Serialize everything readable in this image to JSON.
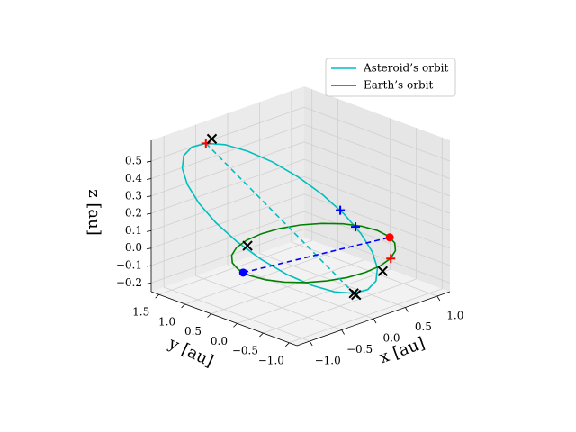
{
  "chart_data": {
    "type": "line3d",
    "xlabel": "x [au]",
    "ylabel": "y [au]",
    "zlabel": "z [au]",
    "xlim": [
      -1.2,
      1.2
    ],
    "ylim": [
      -1.15,
      1.65
    ],
    "zlim": [
      -0.25,
      0.62
    ],
    "xticks": [
      {
        "value": -1,
        "label": "−1.0"
      },
      {
        "value": -0.5,
        "label": "−0.5"
      },
      {
        "value": 0,
        "label": "0.0"
      },
      0.5,
      {
        "value": 1,
        "label": "1.0"
      }
    ],
    "yticks": [
      {
        "value": -1,
        "label": "−1.0"
      },
      {
        "value": -0.5,
        "label": "−0.5"
      },
      {
        "value": 0,
        "label": "0.0"
      },
      0.5,
      {
        "value": 1,
        "label": "1.0"
      },
      1.5
    ],
    "zticks": [
      {
        "value": -0.2,
        "label": "−0.2"
      },
      {
        "value": -0.1,
        "label": "−0.1"
      },
      {
        "value": 0,
        "label": "0.0"
      },
      0.1,
      0.2,
      0.3,
      0.4,
      0.5
    ],
    "grid": true,
    "legend": "upper right",
    "series": [
      {
        "name": "Asteroid’s orbit",
        "color": "#00bfbf",
        "x": [
          -0.75,
          -0.535,
          -0.301,
          -0.062,
          0.165,
          0.366,
          0.525,
          0.632,
          0.681,
          0.666,
          0.591,
          0.459,
          0.28,
          0.065,
          -0.169,
          -0.408,
          -0.635,
          -0.836,
          -0.995,
          -1.102,
          -1.151,
          -1.136,
          -1.061,
          -0.929
        ],
        "y": [
          1.15,
          1.045,
          0.894,
          0.707,
          0.495,
          0.275,
          0.06,
          -0.135,
          -0.295,
          -0.411,
          -0.474,
          -0.481,
          -0.43,
          -0.325,
          -0.174,
          0.013,
          0.225,
          0.445,
          0.66,
          0.855,
          1.015,
          1.131,
          1.194,
          1.201
        ],
        "z": [
          0.6,
          0.576,
          0.525,
          0.452,
          0.36,
          0.257,
          0.15,
          0.045,
          -0.05,
          -0.128,
          -0.185,
          -0.216,
          -0.22,
          -0.196,
          -0.145,
          -0.072,
          0.02,
          0.123,
          0.23,
          0.335,
          0.43,
          0.508,
          0.565,
          0.596
        ]
      },
      {
        "name": "Earth’s orbit",
        "color": "#008000",
        "x": [
          1,
          0.966,
          0.866,
          0.707,
          0.5,
          0.259,
          0,
          -0.259,
          -0.5,
          -0.707,
          -0.866,
          -0.966,
          -1,
          -0.966,
          -0.866,
          -0.707,
          -0.5,
          -0.259,
          0,
          0.259,
          0.5,
          0.707,
          0.866,
          0.966
        ],
        "y": [
          0,
          0.259,
          0.5,
          0.707,
          0.866,
          0.966,
          1,
          0.966,
          0.866,
          0.707,
          0.5,
          0.259,
          0,
          -0.259,
          -0.5,
          -0.707,
          -0.866,
          -0.966,
          -1,
          -0.966,
          -0.866,
          -0.707,
          -0.5,
          -0.259
        ],
        "z": [
          0,
          0,
          0,
          0,
          0,
          0,
          0,
          0,
          0,
          0,
          0,
          0,
          0,
          0,
          0,
          0,
          0,
          0,
          0,
          0,
          0,
          0,
          0,
          0
        ]
      }
    ],
    "lines": [
      {
        "color": "#00bfbf",
        "x": [
          -0.75,
          0.28
        ],
        "y": [
          1.15,
          -0.43
        ],
        "z": [
          0.6,
          -0.22
        ]
      },
      {
        "color": "#0000ff",
        "x": [
          -0.99,
          0.95
        ],
        "y": [
          0.14,
          -0.3
        ],
        "z": [
          0,
          0
        ]
      }
    ],
    "points": [
      {
        "marker": "o",
        "color": "#ff0000",
        "x": 0.95,
        "y": -0.3,
        "z": 0
      },
      {
        "marker": "o",
        "color": "#0000ff",
        "x": -0.99,
        "y": 0.14,
        "z": 0
      },
      {
        "marker": "+",
        "color": "#ff0000",
        "x": -0.75,
        "y": 1.15,
        "z": 0.6
      },
      {
        "marker": "+",
        "color": "#ff0000",
        "x": 0.5,
        "y": -0.87,
        "z": 0
      },
      {
        "marker": "+",
        "color": "#0000ff",
        "x": 0.5,
        "y": 0.1,
        "z": 0.17
      },
      {
        "marker": "+",
        "color": "#0000ff",
        "x": 0.6,
        "y": -0.07,
        "z": 0.08
      },
      {
        "marker": "x",
        "color": "#000000",
        "x": -0.68,
        "y": 1.12,
        "z": 0.62
      },
      {
        "marker": "x",
        "color": "#000000",
        "x": -0.75,
        "y": 0.35,
        "z": 0.1
      },
      {
        "marker": "x",
        "color": "#000000",
        "x": 0.35,
        "y": -0.9,
        "z": -0.05
      },
      {
        "marker": "x",
        "color": "#000000",
        "x": 0.28,
        "y": -0.43,
        "z": -0.22
      },
      {
        "marker": "x",
        "color": "#000000",
        "x": 0.3,
        "y": -0.45,
        "z": -0.23
      }
    ]
  }
}
